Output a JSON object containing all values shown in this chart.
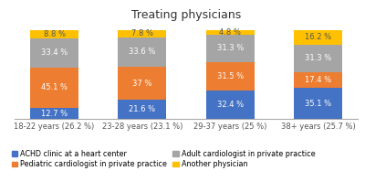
{
  "title": "Treating physicians",
  "categories": [
    "18-22 years (26.2 %)",
    "23-28 years (23.1 %)",
    "29-37 years (25 %)",
    "38+ years (25.7 %)"
  ],
  "series": {
    "ACHD clinic at a heart center": [
      12.7,
      21.6,
      32.4,
      35.1
    ],
    "Pediatric cardiologist in private practice": [
      45.1,
      37.0,
      31.5,
      17.4
    ],
    "Adult cardiologist in private practice": [
      33.4,
      33.6,
      31.3,
      31.3
    ],
    "Another physician": [
      8.8,
      7.8,
      4.8,
      16.2
    ]
  },
  "colors": {
    "ACHD clinic at a heart center": "#4472C4",
    "Pediatric cardiologist in private practice": "#ED7D31",
    "Adult cardiologist in private practice": "#A5A5A5",
    "Another physician": "#FFC000"
  },
  "layer_order": [
    "ACHD clinic at a heart center",
    "Pediatric cardiologist in private practice",
    "Adult cardiologist in private practice",
    "Another physician"
  ],
  "bar_width": 0.55,
  "ylim": [
    0,
    108
  ],
  "title_fontsize": 9,
  "label_fontsize": 6.0,
  "legend_fontsize": 5.8,
  "tick_fontsize": 6.0,
  "label_color_dark": "#555555",
  "label_color_light": "#ffffff"
}
